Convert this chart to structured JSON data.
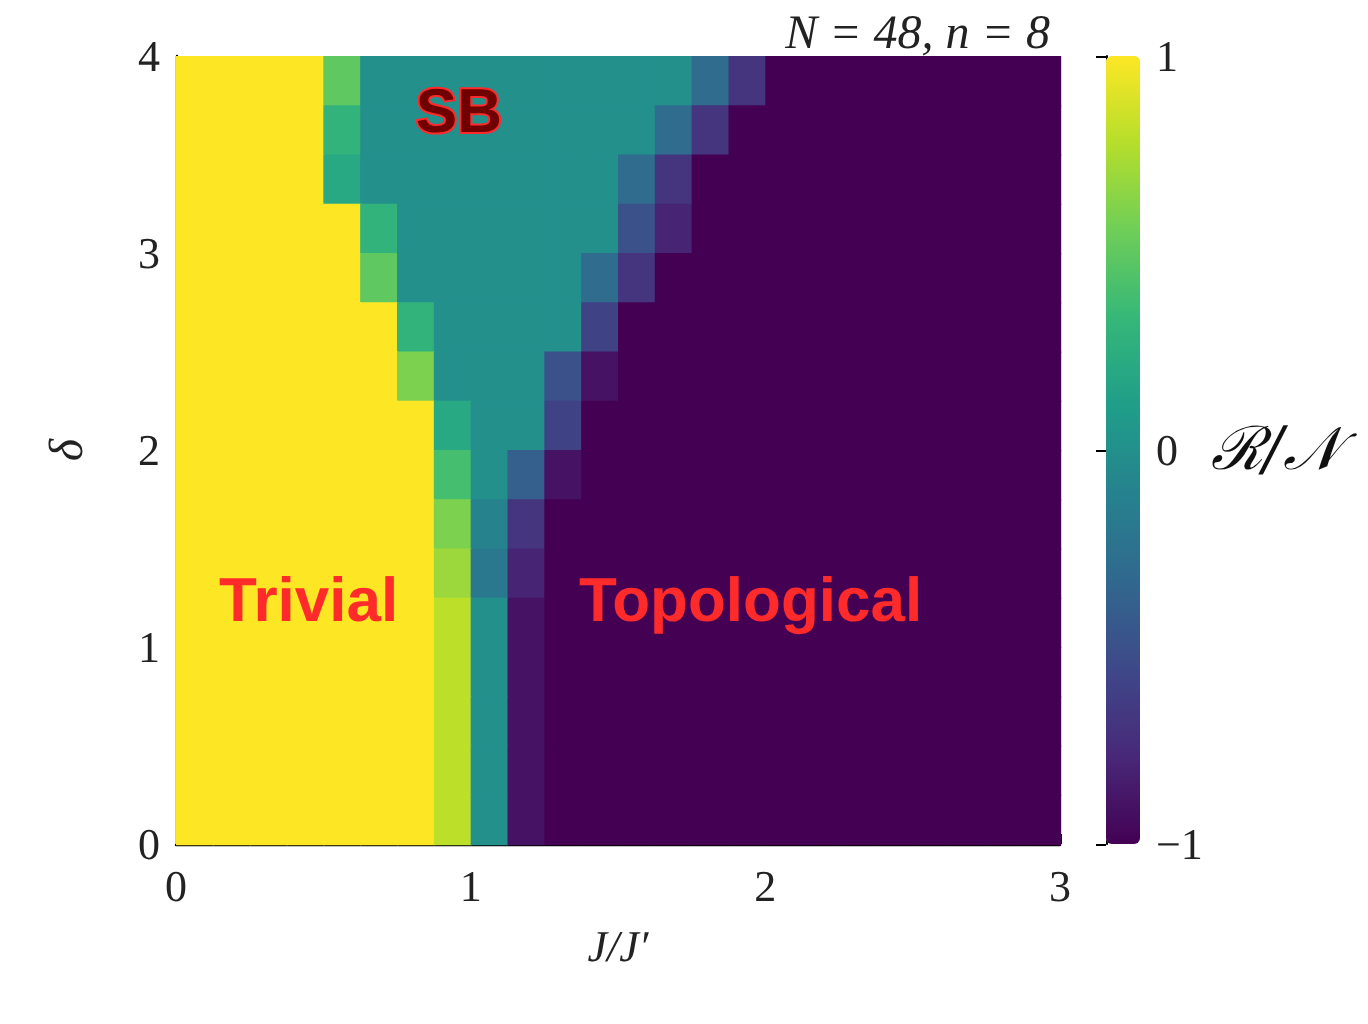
{
  "chart_data": {
    "type": "heatmap",
    "title": "N = 48, n = 8",
    "xlabel": "J/J′",
    "ylabel": "δ",
    "clabel": "ℛ/𝒩",
    "x": [
      0.0625,
      0.1875,
      0.3125,
      0.4375,
      0.5625,
      0.6875,
      0.8125,
      0.9375,
      1.0625,
      1.1875,
      1.3125,
      1.4375,
      1.5625,
      1.6875,
      1.8125,
      1.9375,
      2.0625,
      2.1875,
      2.3125,
      2.4375,
      2.5625,
      2.6875,
      2.8125,
      2.9375
    ],
    "y": [
      3.875,
      3.625,
      3.375,
      3.125,
      2.875,
      2.625,
      2.375,
      2.125,
      1.875,
      1.625,
      1.375,
      1.125,
      0.875,
      0.625,
      0.375,
      0.125
    ],
    "xlim": [
      0,
      3
    ],
    "xticks": [
      0,
      1,
      2,
      3
    ],
    "ylim": [
      0,
      4
    ],
    "yticks": [
      0,
      1,
      2,
      3,
      4
    ],
    "clim": [
      -1,
      1
    ],
    "cticks": [
      -1,
      0,
      1
    ],
    "cells": [
      [
        1,
        1,
        1,
        1,
        0.5,
        0,
        0,
        0,
        0,
        0,
        0,
        0,
        0,
        0,
        -0.3,
        -0.7,
        -1,
        -1,
        -1,
        -1,
        -1,
        -1,
        -1,
        -1
      ],
      [
        1,
        1,
        1,
        1,
        0.3,
        0,
        0,
        0,
        0,
        0,
        0,
        0,
        0,
        -0.3,
        -0.7,
        -1,
        -1,
        -1,
        -1,
        -1,
        -1,
        -1,
        -1,
        -1
      ],
      [
        1,
        1,
        1,
        1,
        0.2,
        0,
        0,
        0,
        0,
        0,
        0,
        0,
        -0.3,
        -0.7,
        -1,
        -1,
        -1,
        -1,
        -1,
        -1,
        -1,
        -1,
        -1,
        -1
      ],
      [
        1,
        1,
        1,
        1,
        1,
        0.3,
        0,
        0,
        0,
        0,
        0,
        0,
        -0.5,
        -0.8,
        -1,
        -1,
        -1,
        -1,
        -1,
        -1,
        -1,
        -1,
        -1,
        -1
      ],
      [
        1,
        1,
        1,
        1,
        1,
        0.5,
        0,
        0,
        0,
        0,
        0,
        -0.3,
        -0.7,
        -1,
        -1,
        -1,
        -1,
        -1,
        -1,
        -1,
        -1,
        -1,
        -1,
        -1
      ],
      [
        1,
        1,
        1,
        1,
        1,
        1,
        0.3,
        0,
        0,
        0,
        0,
        -0.6,
        -1,
        -1,
        -1,
        -1,
        -1,
        -1,
        -1,
        -1,
        -1,
        -1,
        -1,
        -1
      ],
      [
        1,
        1,
        1,
        1,
        1,
        1,
        0.6,
        0,
        0,
        0,
        -0.5,
        -0.9,
        -1,
        -1,
        -1,
        -1,
        -1,
        -1,
        -1,
        -1,
        -1,
        -1,
        -1,
        -1
      ],
      [
        1,
        1,
        1,
        1,
        1,
        1,
        1,
        0.2,
        0,
        0,
        -0.6,
        -1,
        -1,
        -1,
        -1,
        -1,
        -1,
        -1,
        -1,
        -1,
        -1,
        -1,
        -1,
        -1
      ],
      [
        1,
        1,
        1,
        1,
        1,
        1,
        1,
        0.4,
        0,
        -0.4,
        -0.9,
        -1,
        -1,
        -1,
        -1,
        -1,
        -1,
        -1,
        -1,
        -1,
        -1,
        -1,
        -1,
        -1
      ],
      [
        1,
        1,
        1,
        1,
        1,
        1,
        1,
        0.6,
        -0.1,
        -0.7,
        -1,
        -1,
        -1,
        -1,
        -1,
        -1,
        -1,
        -1,
        -1,
        -1,
        -1,
        -1,
        -1,
        -1
      ],
      [
        1,
        1,
        1,
        1,
        1,
        1,
        1,
        0.7,
        -0.2,
        -0.8,
        -1,
        -1,
        -1,
        -1,
        -1,
        -1,
        -1,
        -1,
        -1,
        -1,
        -1,
        -1,
        -1,
        -1
      ],
      [
        1,
        1,
        1,
        1,
        1,
        1,
        1,
        0.8,
        0,
        -0.9,
        -1,
        -1,
        -1,
        -1,
        -1,
        -1,
        -1,
        -1,
        -1,
        -1,
        -1,
        -1,
        -1,
        -1
      ],
      [
        1,
        1,
        1,
        1,
        1,
        1,
        1,
        0.8,
        0,
        -0.9,
        -1,
        -1,
        -1,
        -1,
        -1,
        -1,
        -1,
        -1,
        -1,
        -1,
        -1,
        -1,
        -1,
        -1
      ],
      [
        1,
        1,
        1,
        1,
        1,
        1,
        1,
        0.8,
        0,
        -0.9,
        -1,
        -1,
        -1,
        -1,
        -1,
        -1,
        -1,
        -1,
        -1,
        -1,
        -1,
        -1,
        -1,
        -1
      ],
      [
        1,
        1,
        1,
        1,
        1,
        1,
        1,
        0.8,
        0,
        -0.9,
        -1,
        -1,
        -1,
        -1,
        -1,
        -1,
        -1,
        -1,
        -1,
        -1,
        -1,
        -1,
        -1,
        -1
      ],
      [
        1,
        1,
        1,
        1,
        1,
        1,
        1,
        0.8,
        0,
        -0.9,
        -1,
        -1,
        -1,
        -1,
        -1,
        -1,
        -1,
        -1,
        -1,
        -1,
        -1,
        -1,
        -1,
        -1
      ]
    ],
    "annotations": [
      "SB",
      "Trivial",
      "Topological"
    ]
  }
}
